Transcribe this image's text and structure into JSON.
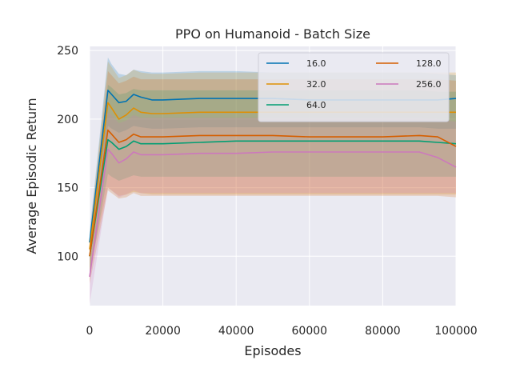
{
  "chart_data": {
    "type": "line",
    "title": "PPO on Humanoid - Batch Size",
    "xlabel": "Episodes",
    "ylabel": "Average Episodic Return",
    "xlim": [
      0,
      100000
    ],
    "ylim": [
      64,
      253
    ],
    "xticks": [
      0,
      20000,
      40000,
      60000,
      80000,
      100000
    ],
    "xtick_labels": [
      "0",
      "20000",
      "40000",
      "60000",
      "80000",
      "100000"
    ],
    "yticks": [
      100,
      150,
      200,
      250
    ],
    "ytick_labels": [
      "100",
      "150",
      "200",
      "250"
    ],
    "grid": true,
    "legend_position": "top-right",
    "legend_columns": 2,
    "series": [
      {
        "name": "16.0",
        "color": "#0173b2",
        "x": [
          0,
          5000,
          6000,
          8000,
          10000,
          12000,
          14000,
          17000,
          20000,
          30000,
          40000,
          50000,
          60000,
          70000,
          80000,
          90000,
          95000,
          100000
        ],
        "values": [
          110,
          221,
          218,
          212,
          213,
          218,
          216,
          214,
          214,
          215,
          215,
          215,
          214,
          214,
          214,
          214,
          214,
          215
        ],
        "band_upper": [
          118,
          245,
          240,
          233,
          232,
          236,
          235,
          234,
          234,
          235,
          235,
          234,
          234,
          234,
          234,
          234,
          233,
          232
        ],
        "band_lower": [
          100,
          195,
          193,
          190,
          192,
          195,
          194,
          193,
          193,
          194,
          194,
          194,
          194,
          194,
          194,
          194,
          193,
          193
        ]
      },
      {
        "name": "32.0",
        "color": "#de8f05",
        "x": [
          0,
          5000,
          6000,
          8000,
          10000,
          12000,
          14000,
          17000,
          20000,
          30000,
          40000,
          50000,
          60000,
          70000,
          80000,
          90000,
          95000,
          100000
        ],
        "values": [
          105,
          212,
          208,
          200,
          203,
          208,
          205,
          204,
          204,
          205,
          205,
          205,
          205,
          205,
          205,
          205,
          205,
          205
        ],
        "band_upper": [
          115,
          242,
          238,
          230,
          232,
          236,
          234,
          233,
          233,
          234,
          234,
          234,
          234,
          234,
          234,
          234,
          234,
          234
        ],
        "band_lower": [
          90,
          150,
          148,
          144,
          145,
          147,
          146,
          145,
          145,
          145,
          145,
          145,
          145,
          145,
          145,
          145,
          145,
          145
        ]
      },
      {
        "name": "64.0",
        "color": "#029e73",
        "x": [
          0,
          5000,
          6000,
          8000,
          10000,
          12000,
          14000,
          17000,
          20000,
          30000,
          40000,
          50000,
          60000,
          70000,
          80000,
          90000,
          95000,
          100000
        ],
        "values": [
          100,
          185,
          183,
          178,
          180,
          184,
          182,
          182,
          182,
          183,
          184,
          184,
          184,
          184,
          184,
          184,
          183,
          182
        ],
        "band_upper": [
          110,
          225,
          223,
          218,
          219,
          222,
          221,
          221,
          221,
          221,
          221,
          221,
          221,
          221,
          221,
          221,
          220,
          220
        ],
        "band_lower": [
          85,
          160,
          158,
          155,
          157,
          159,
          158,
          158,
          158,
          158,
          158,
          158,
          158,
          158,
          158,
          158,
          158,
          158
        ]
      },
      {
        "name": "128.0",
        "color": "#d55e00",
        "x": [
          0,
          5000,
          6000,
          8000,
          10000,
          12000,
          14000,
          17000,
          20000,
          30000,
          40000,
          50000,
          60000,
          70000,
          80000,
          90000,
          95000,
          100000
        ],
        "values": [
          100,
          192,
          189,
          183,
          185,
          189,
          187,
          187,
          187,
          188,
          188,
          188,
          187,
          187,
          187,
          188,
          187,
          180
        ],
        "band_upper": [
          112,
          235,
          232,
          226,
          228,
          231,
          229,
          229,
          229,
          229,
          229,
          229,
          229,
          229,
          229,
          229,
          229,
          228
        ],
        "band_lower": [
          80,
          148,
          146,
          142,
          143,
          146,
          144,
          144,
          144,
          144,
          144,
          144,
          144,
          144,
          144,
          144,
          144,
          143
        ]
      },
      {
        "name": "256.0",
        "color": "#cc78bc",
        "x": [
          0,
          5000,
          6000,
          8000,
          10000,
          12000,
          14000,
          17000,
          20000,
          30000,
          40000,
          50000,
          60000,
          70000,
          80000,
          90000,
          95000,
          100000
        ],
        "values": [
          85,
          178,
          175,
          168,
          171,
          176,
          174,
          174,
          174,
          175,
          175,
          176,
          176,
          176,
          176,
          176,
          172,
          165
        ],
        "band_upper": [
          100,
          205,
          203,
          197,
          199,
          203,
          201,
          201,
          201,
          201,
          201,
          201,
          201,
          201,
          201,
          201,
          200,
          198
        ],
        "band_lower": [
          65,
          150,
          148,
          143,
          145,
          148,
          146,
          146,
          146,
          146,
          146,
          146,
          146,
          146,
          146,
          146,
          146,
          146
        ]
      }
    ]
  }
}
